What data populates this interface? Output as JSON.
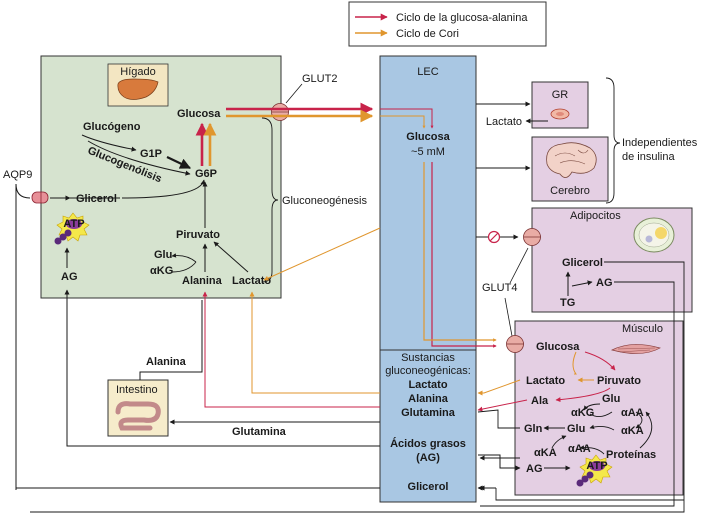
{
  "legend": {
    "glucose_alanine": "Ciclo de la glucosa-alanina",
    "cori": "Ciclo de Cori"
  },
  "colors": {
    "glucose_alanine": "#c8234a",
    "cori": "#e0962e",
    "liver_bg": "#d6e3cf",
    "lec_bg": "#a9c7e3",
    "tissue_bg": "#e4cfe3",
    "black": "#1a1a1a"
  },
  "liver": {
    "title": "Hígado",
    "glucosa": "Glucosa",
    "glucogeno": "Glucógeno",
    "g1p": "G1P",
    "glucogenolisis": "Glucogenólisis",
    "g6p": "G6P",
    "glicerol": "Glicerol",
    "piruvato": "Piruvato",
    "glu": "Glu",
    "akg": "αKG",
    "alanina": "Alanina",
    "lactato": "Lactato",
    "ag": "AG",
    "atp": "ATP"
  },
  "aqp9": "AQP9",
  "glut2": "GLUT2",
  "gluconeogenesis": "Gluconeogénesis",
  "lec": {
    "title": "LEC",
    "glucosa": "Glucosa",
    "glucosa_conc": "~5 mM",
    "sustancias_l1": "Sustancias",
    "sustancias_l2": "gluconeogénicas:",
    "lactato": "Lactato",
    "alanina": "Alanina",
    "glutamina": "Glutamina",
    "acidos_l1": "Ácidos grasos",
    "acidos_l2": "(AG)",
    "glicerol": "Glicerol"
  },
  "gr": {
    "title": "GR",
    "lactato": "Lactato"
  },
  "cerebro": "Cerebro",
  "insulin_indep_l1": "Independientes",
  "insulin_indep_l2": "de insulina",
  "adipocitos": {
    "title": "Adipocitos",
    "glicerol": "Glicerol",
    "tg": "TG",
    "ag": "AG"
  },
  "glut4": "GLUT4",
  "musculo": {
    "title": "Músculo",
    "glucosa": "Glucosa",
    "lactato": "Lactato",
    "piruvato": "Piruvato",
    "ala": "Ala",
    "glu": "Glu",
    "akg": "αKG",
    "aaa": "αAA",
    "aka": "αKA",
    "gln": "Gln",
    "glu2": "Glu",
    "aka2": "αKA",
    "aaa2": "αAA",
    "proteinas": "Proteínas",
    "ag": "AG",
    "atp": "ATP"
  },
  "intestino": {
    "title": "Intestino",
    "alanina": "Alanina",
    "glutamina": "Glutamina"
  }
}
